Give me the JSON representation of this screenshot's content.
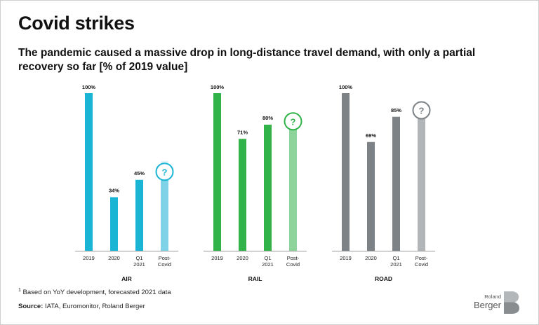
{
  "header": {
    "title": "Covid strikes",
    "subtitle": "The pandemic caused a massive drop in long-distance travel demand, with only a partial recovery so far [% of 2019 value]"
  },
  "chart_data": [
    {
      "type": "bar",
      "name": "AIR",
      "categories": [
        "2019",
        "2020",
        "Q1 2021",
        "Post-Covid"
      ],
      "values": [
        100,
        34,
        45,
        null
      ],
      "labels": [
        "100%",
        "34%",
        "45%",
        "?"
      ],
      "projection_range": [
        45,
        57
      ],
      "ylim": [
        0,
        100
      ],
      "colors": [
        "#1ab4d4",
        "#1ab4d4",
        "#1ab4d4",
        "#7fd2e8"
      ],
      "range_color": "#dff3f9"
    },
    {
      "type": "bar",
      "name": "RAIL",
      "categories": [
        "2019",
        "2020",
        "Q1 2021",
        "Post-Covid"
      ],
      "values": [
        100,
        71,
        80,
        null
      ],
      "labels": [
        "100%",
        "71%",
        "80%",
        "?"
      ],
      "projection_range": [
        80,
        86
      ],
      "ylim": [
        0,
        100
      ],
      "colors": [
        "#32b34a",
        "#32b34a",
        "#32b34a",
        "#8ed49a"
      ],
      "range_color": "#dff2e2"
    },
    {
      "type": "bar",
      "name": "ROAD",
      "categories": [
        "2019",
        "2020",
        "Q1 2021",
        "Post-Covid"
      ],
      "values": [
        100,
        69,
        85,
        null
      ],
      "labels": [
        "100%",
        "69%",
        "85%",
        "?"
      ],
      "projection_range": [
        85,
        95
      ],
      "ylim": [
        0,
        100
      ],
      "colors": [
        "#7d8286",
        "#7d8286",
        "#7d8286",
        "#b1b5b8"
      ],
      "range_color": "#e6e7e8"
    }
  ],
  "footer": {
    "footnote_mark": "1",
    "footnote_text": "Based on YoY development, forecasted 2021 data",
    "source_label": "Source:",
    "source_text": "IATA, Euromonitor, Roland Berger"
  },
  "logo": {
    "line1": "Roland",
    "line2": "Berger"
  }
}
